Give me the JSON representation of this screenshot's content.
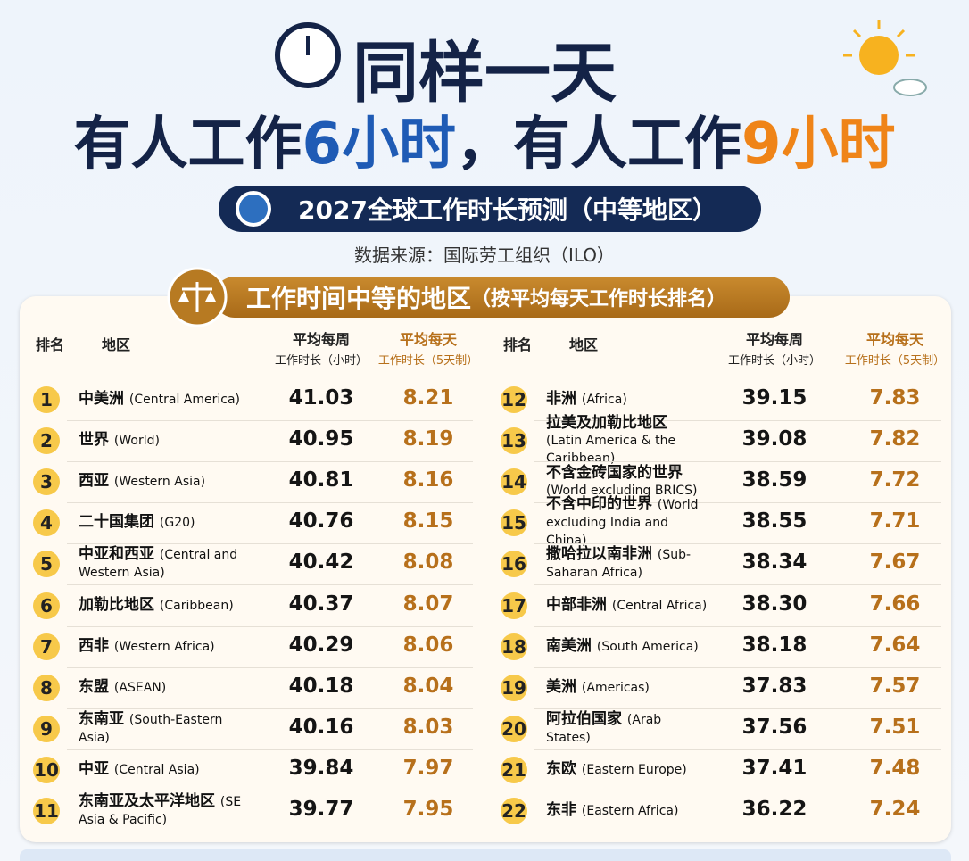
{
  "header": {
    "title_line1": "同样一天",
    "title_line2": [
      {
        "text": "有人工作",
        "color": "#142347"
      },
      {
        "text": "6小时",
        "color": "#1f5bb5"
      },
      {
        "text": "，有人工作",
        "color": "#142347"
      },
      {
        "text": "9小时",
        "color": "#ef8418"
      }
    ],
    "badge": "2027全球工作时长预测（中等地区）",
    "source": "数据来源：国际劳工组织（ILO）"
  },
  "section": {
    "title": "工作时间中等的地区",
    "subtitle": "（按平均每天工作时长排名）"
  },
  "table": {
    "columns": {
      "rank": "排名",
      "region": "地区",
      "weekly": [
        "平均每周",
        "工作时长（小时）"
      ],
      "daily": [
        "平均每天",
        "工作时长（5天制）"
      ]
    },
    "rows": [
      {
        "rank": "1",
        "zh": "中美洲",
        "en": "(Central America)",
        "weekly": "41.03",
        "daily": "8.21"
      },
      {
        "rank": "2",
        "zh": "世界",
        "en": "(World)",
        "weekly": "40.95",
        "daily": "8.19"
      },
      {
        "rank": "3",
        "zh": "西亚",
        "en": "(Western Asia)",
        "weekly": "40.81",
        "daily": "8.16"
      },
      {
        "rank": "4",
        "zh": "二十国集团",
        "en": "(G20)",
        "weekly": "40.76",
        "daily": "8.15"
      },
      {
        "rank": "5",
        "zh": "中亚和西亚",
        "en": "(Central and Western Asia)",
        "weekly": "40.42",
        "daily": "8.08"
      },
      {
        "rank": "6",
        "zh": "加勒比地区",
        "en": "(Caribbean)",
        "weekly": "40.37",
        "daily": "8.07"
      },
      {
        "rank": "7",
        "zh": "西非",
        "en": "(Western Africa)",
        "weekly": "40.29",
        "daily": "8.06"
      },
      {
        "rank": "8",
        "zh": "东盟",
        "en": "(ASEAN)",
        "weekly": "40.18",
        "daily": "8.04"
      },
      {
        "rank": "9",
        "zh": "东南亚",
        "en": "(South-Eastern Asia)",
        "weekly": "40.16",
        "daily": "8.03"
      },
      {
        "rank": "10",
        "zh": "中亚",
        "en": "(Central Asia)",
        "weekly": "39.84",
        "daily": "7.97"
      },
      {
        "rank": "11",
        "zh": "东南亚及太平洋地区",
        "en": "(SE Asia & Pacific)",
        "weekly": "39.77",
        "daily": "7.95"
      },
      {
        "rank": "12",
        "zh": "非洲",
        "en": "(Africa)",
        "weekly": "39.15",
        "daily": "7.83"
      },
      {
        "rank": "13",
        "zh": "拉美及加勒比地区",
        "en": "(Latin America & the Caribbean)",
        "weekly": "39.08",
        "daily": "7.82"
      },
      {
        "rank": "14",
        "zh": "不含金砖国家的世界",
        "en": "(World excluding BRICS)",
        "weekly": "38.59",
        "daily": "7.72"
      },
      {
        "rank": "15",
        "zh": "不含中印的世界",
        "en": "(World excluding India and China)",
        "weekly": "38.55",
        "daily": "7.71"
      },
      {
        "rank": "16",
        "zh": "撒哈拉以南非洲",
        "en": "(Sub-Saharan Africa)",
        "weekly": "38.34",
        "daily": "7.67"
      },
      {
        "rank": "17",
        "zh": "中部非洲",
        "en": "(Central Africa)",
        "weekly": "38.30",
        "daily": "7.66"
      },
      {
        "rank": "18",
        "zh": "南美洲",
        "en": "(South America)",
        "weekly": "38.18",
        "daily": "7.64"
      },
      {
        "rank": "19",
        "zh": "美洲",
        "en": "(Americas)",
        "weekly": "37.83",
        "daily": "7.57"
      },
      {
        "rank": "20",
        "zh": "阿拉伯国家",
        "en": "(Arab States)",
        "weekly": "37.56",
        "daily": "7.51"
      },
      {
        "rank": "21",
        "zh": "东欧",
        "en": "(Eastern Europe)",
        "weekly": "37.41",
        "daily": "7.48"
      },
      {
        "rank": "22",
        "zh": "东非",
        "en": "(Eastern Africa)",
        "weekly": "36.22",
        "daily": "7.24"
      }
    ]
  }
}
